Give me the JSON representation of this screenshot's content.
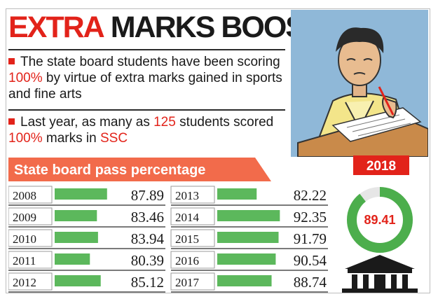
{
  "headline": {
    "part1": "EXTRA",
    "part2": "MARKS BOOST"
  },
  "bullets": [
    {
      "pre": "The state board students have been scoring ",
      "highlight": "100%",
      "post": " by virtue of extra marks gained in sports and fine arts"
    },
    {
      "pre": "Last year, as many as ",
      "highlight": "125",
      "mid": " students scored ",
      "highlight2": "100%",
      "mid2": " marks in ",
      "highlight3": "SSC"
    }
  ],
  "chart_data": {
    "type": "bar",
    "title": "State board pass percentage",
    "categories": [
      "2008",
      "2009",
      "2010",
      "2011",
      "2012",
      "2013",
      "2014",
      "2015",
      "2016",
      "2017"
    ],
    "values": [
      87.89,
      83.46,
      83.94,
      80.39,
      85.12,
      82.22,
      92.35,
      91.79,
      90.54,
      88.74
    ],
    "value_labels": [
      "87.89",
      "83.46",
      "83.94",
      "80.39",
      "85.12",
      "82.22",
      "92.35",
      "91.79",
      "90.54",
      "88.74"
    ],
    "orientation": "horizontal",
    "layout": "two-column",
    "bar_color": "#5cb85c"
  },
  "highlight": {
    "year": "2018",
    "value": 89.41,
    "value_label": "89.41",
    "ring_color": "#4cae4c",
    "badge_color": "#e2231a"
  },
  "colors": {
    "accent_red": "#e2231a",
    "subhead_orange": "#f26b4b",
    "bar_green": "#5cb85c",
    "rule": "#2b2b2b"
  },
  "icons": [
    "student-writing-illustration",
    "school-building-icon"
  ]
}
